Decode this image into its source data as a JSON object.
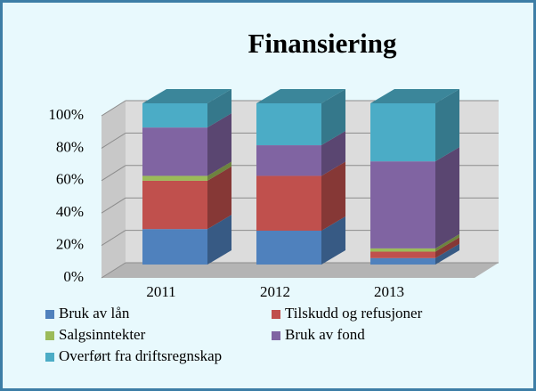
{
  "chart_data": {
    "type": "bar3d_stacked",
    "title": "Finansiering",
    "categories": [
      "2011",
      "2012",
      "2013"
    ],
    "series": [
      {
        "name": "Bruk av lån",
        "color": "#4f81bd",
        "values": [
          22,
          21,
          4
        ]
      },
      {
        "name": "Tilskudd og refusjoner",
        "color": "#c0504d",
        "values": [
          30,
          34,
          4
        ]
      },
      {
        "name": "Salgsinntekter",
        "color": "#9bbb59",
        "values": [
          3,
          0,
          2
        ]
      },
      {
        "name": "Bruk av fond",
        "color": "#8064a2",
        "values": [
          30,
          19,
          54
        ]
      },
      {
        "name": "Overført fra driftsregnskap",
        "color": "#4bacc6",
        "values": [
          15,
          26,
          36
        ]
      }
    ],
    "ylim": [
      0,
      100
    ],
    "yticks": [
      {
        "value": 0,
        "label": "0%"
      },
      {
        "value": 20,
        "label": "20%"
      },
      {
        "value": 40,
        "label": "40%"
      },
      {
        "value": 60,
        "label": "60%"
      },
      {
        "value": 80,
        "label": "80%"
      },
      {
        "value": 100,
        "label": "100%"
      }
    ],
    "grid": true,
    "legend": "bottom"
  }
}
